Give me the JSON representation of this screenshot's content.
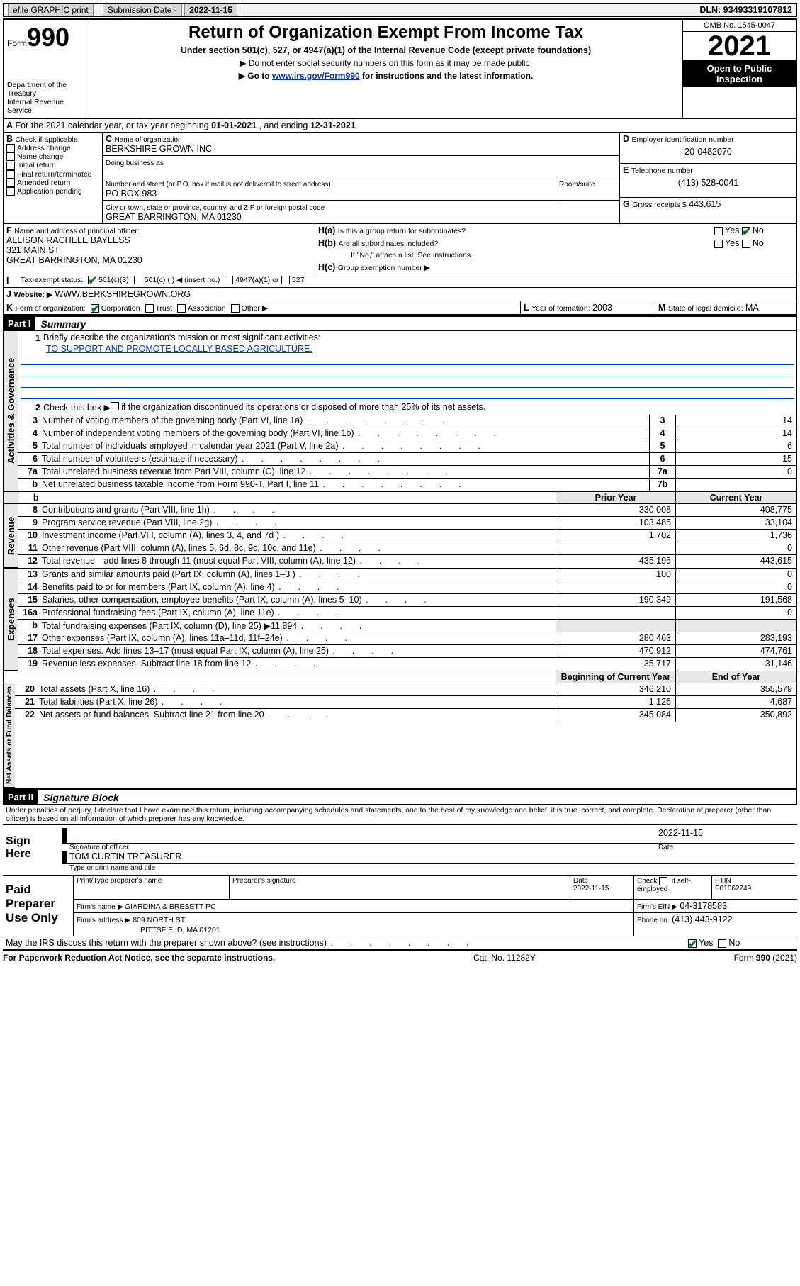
{
  "topbar": {
    "efile": "efile GRAPHIC print",
    "sub_label": "Submission Date -",
    "sub_date": "2022-11-15",
    "dln_label": "DLN:",
    "dln": "93493319107812"
  },
  "header": {
    "form_label": "Form",
    "form_no": "990",
    "dept1": "Department of the Treasury",
    "dept2": "Internal Revenue Service",
    "title": "Return of Organization Exempt From Income Tax",
    "subtitle": "Under section 501(c), 527, or 4947(a)(1) of the Internal Revenue Code (except private foundations)",
    "note1": "▶ Do not enter social security numbers on this form as it may be made public.",
    "note2a": "▶ Go to ",
    "note2_link": "www.irs.gov/Form990",
    "note2b": " for instructions and the latest information.",
    "omb": "OMB No. 1545-0047",
    "year": "2021",
    "open": "Open to Public Inspection"
  },
  "A": {
    "label": "A",
    "text": "For the 2021 calendar year, or tax year beginning ",
    "begin": "01-01-2021",
    "mid": " , and ending ",
    "end": "12-31-2021"
  },
  "B": {
    "label": "B",
    "title": "Check if applicable:",
    "items": [
      "Address change",
      "Name change",
      "Initial return",
      "Final return/terminated",
      "Amended return",
      "Application pending"
    ]
  },
  "C": {
    "label": "C",
    "name_lbl": "Name of organization",
    "name": "BERKSHIRE GROWN INC",
    "dba_lbl": "Doing business as",
    "dba": "",
    "street_lbl": "Number and street (or P.O. box if mail is not delivered to street address)",
    "room_lbl": "Room/suite",
    "street": "PO BOX 983",
    "city_lbl": "City or town, state or province, country, and ZIP or foreign postal code",
    "city": "GREAT BARRINGTON, MA  01230"
  },
  "D": {
    "label": "D",
    "lbl": "Employer identification number",
    "val": "20-0482070"
  },
  "E": {
    "label": "E",
    "lbl": "Telephone number",
    "val": "(413) 528-0041"
  },
  "G": {
    "label": "G",
    "lbl": "Gross receipts $",
    "val": "443,615"
  },
  "F": {
    "label": "F",
    "lbl": "Name and address of principal officer:",
    "name": "ALLISON RACHELE BAYLESS",
    "street": "321 MAIN ST",
    "city": "GREAT BARRINGTON, MA  01230"
  },
  "H": {
    "a_lbl": "H(a)",
    "a_txt": "Is this a group return for subordinates?",
    "b_lbl": "H(b)",
    "b_txt": "Are all subordinates included?",
    "b_note": "If \"No,\" attach a list. See instructions.",
    "c_lbl": "H(c)",
    "c_txt": "Group exemption number ▶",
    "yes": "Yes",
    "no": "No"
  },
  "I": {
    "label": "I",
    "lbl": "Tax-exempt status:",
    "o1": "501(c)(3)",
    "o2": "501(c) (  ) ◀ (insert no.)",
    "o3": "4947(a)(1) or",
    "o4": "527"
  },
  "J": {
    "label": "J",
    "lbl": "Website: ▶",
    "val": "WWW.BERKSHIREGROWN.ORG"
  },
  "K": {
    "label": "K",
    "lbl": "Form of organization:",
    "o1": "Corporation",
    "o2": "Trust",
    "o3": "Association",
    "o4": "Other ▶"
  },
  "L": {
    "label": "L",
    "lbl": "Year of formation:",
    "val": "2003"
  },
  "M": {
    "label": "M",
    "lbl": "State of legal domicile:",
    "val": "MA"
  },
  "part1": {
    "hdr": "Part I",
    "title": "Summary"
  },
  "summary": {
    "q1_lbl": "1",
    "q1": "Briefly describe the organization's mission or most significant activities:",
    "q1_val": "TO SUPPORT AND PROMOTE LOCALLY BASED AGRICULTURE.",
    "q2_lbl": "2",
    "q2a": "Check this box ▶",
    "q2b": " if the organization discontinued its operations or disposed of more than 25% of its net assets.",
    "vtab1": "Activities & Governance",
    "rows_gov": [
      {
        "n": "3",
        "d": "Number of voting members of the governing body (Part VI, line 1a)",
        "b": "3",
        "v": "14"
      },
      {
        "n": "4",
        "d": "Number of independent voting members of the governing body (Part VI, line 1b)",
        "b": "4",
        "v": "14"
      },
      {
        "n": "5",
        "d": "Total number of individuals employed in calendar year 2021 (Part V, line 2a)",
        "b": "5",
        "v": "6"
      },
      {
        "n": "6",
        "d": "Total number of volunteers (estimate if necessary)",
        "b": "6",
        "v": "15"
      },
      {
        "n": "7a",
        "d": "Total unrelated business revenue from Part VIII, column (C), line 12",
        "b": "7a",
        "v": "0"
      },
      {
        "n": "b",
        "d": "Net unrelated business taxable income from Form 990-T, Part I, line 11",
        "b": "7b",
        "v": ""
      }
    ],
    "prior_hdr": "Prior Year",
    "curr_hdr": "Current Year",
    "vtab2": "Revenue",
    "rows_rev": [
      {
        "n": "8",
        "d": "Contributions and grants (Part VIII, line 1h)",
        "p": "330,008",
        "c": "408,775"
      },
      {
        "n": "9",
        "d": "Program service revenue (Part VIII, line 2g)",
        "p": "103,485",
        "c": "33,104"
      },
      {
        "n": "10",
        "d": "Investment income (Part VIII, column (A), lines 3, 4, and 7d )",
        "p": "1,702",
        "c": "1,736"
      },
      {
        "n": "11",
        "d": "Other revenue (Part VIII, column (A), lines 5, 6d, 8c, 9c, 10c, and 11e)",
        "p": "",
        "c": "0"
      },
      {
        "n": "12",
        "d": "Total revenue—add lines 8 through 11 (must equal Part VIII, column (A), line 12)",
        "p": "435,195",
        "c": "443,615"
      }
    ],
    "vtab3": "Expenses",
    "rows_exp": [
      {
        "n": "13",
        "d": "Grants and similar amounts paid (Part IX, column (A), lines 1–3 )",
        "p": "100",
        "c": "0"
      },
      {
        "n": "14",
        "d": "Benefits paid to or for members (Part IX, column (A), line 4)",
        "p": "",
        "c": "0"
      },
      {
        "n": "15",
        "d": "Salaries, other compensation, employee benefits (Part IX, column (A), lines 5–10)",
        "p": "190,349",
        "c": "191,568"
      },
      {
        "n": "16a",
        "d": "Professional fundraising fees (Part IX, column (A), line 11e)",
        "p": "",
        "c": "0"
      },
      {
        "n": "b",
        "d": "Total fundraising expenses (Part IX, column (D), line 25) ▶11,894",
        "p": "SHADE",
        "c": "SHADE"
      },
      {
        "n": "17",
        "d": "Other expenses (Part IX, column (A), lines 11a–11d, 11f–24e)",
        "p": "280,463",
        "c": "283,193"
      },
      {
        "n": "18",
        "d": "Total expenses. Add lines 13–17 (must equal Part IX, column (A), line 25)",
        "p": "470,912",
        "c": "474,761"
      },
      {
        "n": "19",
        "d": "Revenue less expenses. Subtract line 18 from line 12",
        "p": "-35,717",
        "c": "-31,146"
      }
    ],
    "boy_hdr": "Beginning of Current Year",
    "eoy_hdr": "End of Year",
    "vtab4": "Net Assets or Fund Balances",
    "rows_net": [
      {
        "n": "20",
        "d": "Total assets (Part X, line 16)",
        "p": "346,210",
        "c": "355,579"
      },
      {
        "n": "21",
        "d": "Total liabilities (Part X, line 26)",
        "p": "1,126",
        "c": "4,687"
      },
      {
        "n": "22",
        "d": "Net assets or fund balances. Subtract line 21 from line 20",
        "p": "345,084",
        "c": "350,892"
      }
    ]
  },
  "part2": {
    "hdr": "Part II",
    "title": "Signature Block"
  },
  "sig": {
    "decl": "Under penalties of perjury, I declare that I have examined this return, including accompanying schedules and statements, and to the best of my knowledge and belief, it is true, correct, and complete. Declaration of preparer (other than officer) is based on all information of which preparer has any knowledge.",
    "sign_here": "Sign Here",
    "sig_lbl": "Signature of officer",
    "date_lbl": "Date",
    "date": "2022-11-15",
    "name": "TOM CURTIN TREASURER",
    "name_lbl": "Type or print name and title",
    "paid": "Paid Preparer Use Only",
    "pp_name_lbl": "Print/Type preparer's name",
    "pp_sig_lbl": "Preparer's signature",
    "pp_date_lbl": "Date",
    "pp_date": "2022-11-15",
    "pp_check": "Check",
    "pp_if": "if self-employed",
    "ptin_lbl": "PTIN",
    "ptin": "P01062749",
    "firm_name_lbl": "Firm's name",
    "firm_name": "GIARDINA & BRESETT PC",
    "firm_ein_lbl": "Firm's EIN ▶",
    "firm_ein": "04-3178583",
    "firm_addr_lbl": "Firm's address ▶",
    "firm_addr1": "809 NORTH ST",
    "firm_addr2": "PITTSFIELD, MA  01201",
    "phone_lbl": "Phone no.",
    "phone": "(413) 443-9122",
    "discuss": "May the IRS discuss this return with the preparer shown above? (see instructions)"
  },
  "footer": {
    "l": "For Paperwork Reduction Act Notice, see the separate instructions.",
    "m": "Cat. No. 11282Y",
    "r": "Form 990 (2021)"
  },
  "colors": {
    "link": "#0033cc",
    "shade": "#e8e8e8"
  }
}
